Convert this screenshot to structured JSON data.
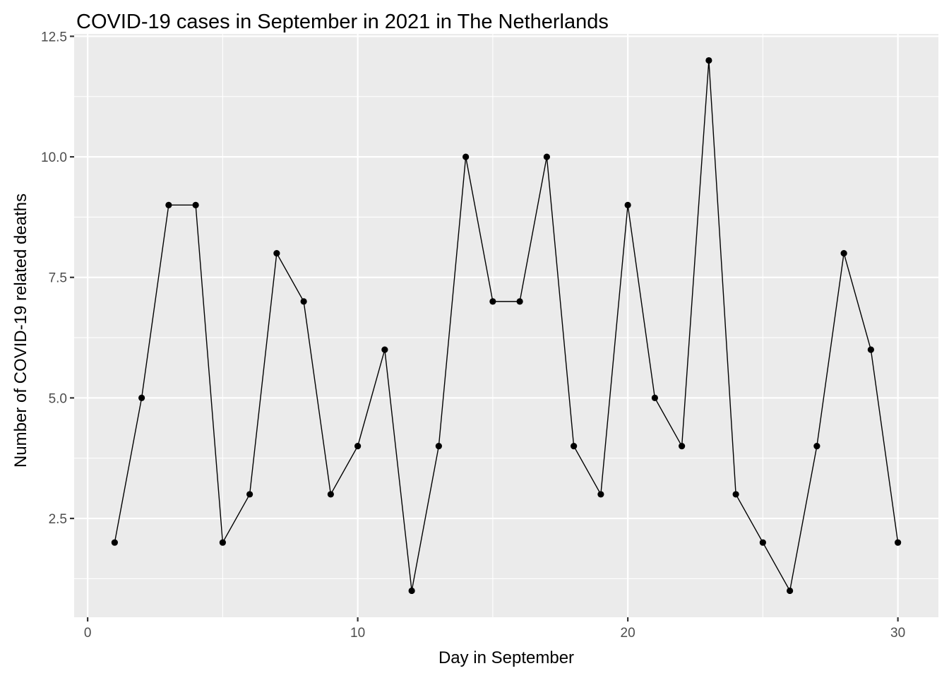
{
  "chart_data": {
    "type": "line",
    "title": "COVID-19 cases in September in 2021 in The Netherlands",
    "xlabel": "Day in September",
    "ylabel": "Number of COVID-19 related deaths",
    "xlim": [
      -0.5,
      31.5
    ],
    "ylim": [
      0.45,
      12.55
    ],
    "x_ticks": [
      0,
      10,
      20,
      30
    ],
    "x_tick_labels": [
      "0",
      "10",
      "20",
      "30"
    ],
    "x_minor_ticks": [
      5,
      15,
      25
    ],
    "y_ticks": [
      2.5,
      5.0,
      7.5,
      10.0,
      12.5
    ],
    "y_tick_labels": [
      "2.5",
      "5.0",
      "7.5",
      "10.0",
      "12.5"
    ],
    "y_minor_ticks": [
      1.25,
      3.75,
      6.25,
      8.75,
      11.25
    ],
    "grid": true,
    "legend": "none",
    "colors": {
      "panel": "#EBEBEB",
      "grid": "#FFFFFF",
      "line": "#000000",
      "point": "#000000"
    },
    "series": [
      {
        "x": [
          1,
          2,
          3,
          4,
          5,
          6,
          7,
          8,
          9,
          10,
          11,
          12,
          13,
          14,
          15,
          16,
          17,
          18,
          19,
          20,
          21,
          22,
          23,
          24,
          25,
          26,
          27,
          28,
          29,
          30
        ],
        "values": [
          2,
          5,
          9,
          9,
          2,
          3,
          8,
          7,
          3,
          4,
          6,
          1,
          4,
          10,
          7,
          7,
          10,
          4,
          3,
          9,
          5,
          4,
          12,
          3,
          2,
          1,
          4,
          8,
          6,
          2
        ]
      }
    ]
  }
}
